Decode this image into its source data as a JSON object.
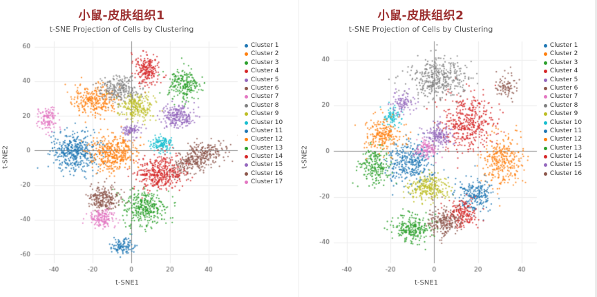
{
  "page": {
    "background": "#ffffff",
    "title_color": "#9c2f2f",
    "subtitle_color": "#555555"
  },
  "chart_data": [
    {
      "type": "scatter",
      "title": "小鼠-皮肤组织1",
      "subtitle": "t-SNE Projection of Cells by Clustering",
      "xlabel": "t-SNE1",
      "ylabel": "t-SNE2",
      "xlim": [
        -50,
        55
      ],
      "ylim": [
        -65,
        63
      ],
      "xticks": [
        -40,
        -20,
        0,
        20,
        40
      ],
      "yticks": [
        -60,
        -40,
        -20,
        0,
        20,
        40,
        60
      ],
      "grid": true,
      "legend_position": "right",
      "point_radius": 1.1,
      "series": [
        {
          "name": "Cluster 1",
          "color": "#1f77b4",
          "cx": -29,
          "cy": -1,
          "sx": 6.5,
          "sy": 5.5,
          "n": 420
        },
        {
          "name": "Cluster 2",
          "color": "#ff7f0e",
          "cx": -20,
          "cy": 29,
          "sx": 5.5,
          "sy": 4.5,
          "n": 280
        },
        {
          "name": "Cluster 3",
          "color": "#2ca02c",
          "cx": 27,
          "cy": 38,
          "sx": 4,
          "sy": 4.5,
          "n": 220
        },
        {
          "name": "Cluster 4",
          "color": "#d62728",
          "cx": 8,
          "cy": 46,
          "sx": 3.5,
          "sy": 4.5,
          "n": 210
        },
        {
          "name": "Cluster 5",
          "color": "#9467bd",
          "cx": 24,
          "cy": 20,
          "sx": 4.5,
          "sy": 3.5,
          "n": 230
        },
        {
          "name": "Cluster 6",
          "color": "#8c564b",
          "cx": 34,
          "cy": -5,
          "sx": 8,
          "sy": 3.5,
          "rot": 28,
          "n": 360
        },
        {
          "name": "Cluster 7",
          "color": "#e377c2",
          "cx": -43,
          "cy": 18,
          "sx": 2.5,
          "sy": 3,
          "n": 120
        },
        {
          "name": "Cluster 8",
          "color": "#7f7f7f",
          "cx": -6,
          "cy": 35,
          "sx": 5,
          "sy": 4,
          "n": 250
        },
        {
          "name": "Cluster 9",
          "color": "#bcbd22",
          "cx": 3,
          "cy": 25,
          "sx": 4.5,
          "sy": 3.5,
          "n": 220
        },
        {
          "name": "Cluster 10",
          "color": "#17becf",
          "cx": 16,
          "cy": 4,
          "sx": 3,
          "sy": 2.5,
          "n": 130
        },
        {
          "name": "Cluster 11",
          "color": "#1f77b4",
          "cx": -4,
          "cy": -55,
          "sx": 3,
          "sy": 2.5,
          "n": 110
        },
        {
          "name": "Cluster 12",
          "color": "#ff7f0e",
          "cx": -9,
          "cy": -1,
          "sx": 6,
          "sy": 5.5,
          "n": 400
        },
        {
          "name": "Cluster 13",
          "color": "#2ca02c",
          "cx": 7,
          "cy": -33,
          "sx": 5.5,
          "sy": 5,
          "n": 330
        },
        {
          "name": "Cluster 14",
          "color": "#d62728",
          "cx": 15,
          "cy": -13,
          "sx": 6,
          "sy": 5,
          "n": 390
        },
        {
          "name": "Cluster 15",
          "color": "#9467bd",
          "cx": 0,
          "cy": 12,
          "sx": 2.5,
          "sy": 2,
          "n": 80
        },
        {
          "name": "Cluster 16",
          "color": "#8c564b",
          "cx": -14,
          "cy": -28,
          "sx": 4,
          "sy": 3.5,
          "n": 230
        },
        {
          "name": "Cluster 17",
          "color": "#e377c2",
          "cx": -15,
          "cy": -39,
          "sx": 3.5,
          "sy": 2.5,
          "n": 160
        }
      ]
    },
    {
      "type": "scatter",
      "title": "小鼠-皮肤组织2",
      "subtitle": "t-SNE Projection of Cells by Clustering",
      "xlabel": "t-SNE1",
      "ylabel": "t-SNE2",
      "xlim": [
        -46,
        47
      ],
      "ylim": [
        -49,
        48
      ],
      "xticks": [
        -40,
        -20,
        0,
        20,
        40
      ],
      "yticks": [
        -40,
        -20,
        0,
        20,
        40
      ],
      "grid": true,
      "legend_position": "right",
      "point_radius": 1.1,
      "series": [
        {
          "name": "Cluster 1",
          "color": "#1f77b4",
          "cx": -11,
          "cy": -5,
          "sx": 5,
          "sy": 4.5,
          "n": 350
        },
        {
          "name": "Cluster 2",
          "color": "#ff7f0e",
          "cx": 31,
          "cy": -4,
          "sx": 4.5,
          "sy": 5.5,
          "n": 300
        },
        {
          "name": "Cluster 3",
          "color": "#2ca02c",
          "cx": -27,
          "cy": -6,
          "sx": 3.5,
          "sy": 4,
          "n": 200
        },
        {
          "name": "Cluster 4",
          "color": "#d62728",
          "cx": 16,
          "cy": 13,
          "sx": 6,
          "sy": 6,
          "n": 420
        },
        {
          "name": "Cluster 5",
          "color": "#9467bd",
          "cx": 2,
          "cy": 7,
          "sx": 3,
          "sy": 2.5,
          "n": 160
        },
        {
          "name": "Cluster 6",
          "color": "#8c564b",
          "cx": 33,
          "cy": 28,
          "sx": 2.5,
          "sy": 2.5,
          "n": 80
        },
        {
          "name": "Cluster 7",
          "color": "#e377c2",
          "cx": -4,
          "cy": 1,
          "sx": 2.5,
          "sy": 2,
          "n": 110
        },
        {
          "name": "Cluster 8",
          "color": "#7f7f7f",
          "cx": 2,
          "cy": 32,
          "sx": 7,
          "sy": 4.5,
          "n": 380
        },
        {
          "name": "Cluster 9",
          "color": "#bcbd22",
          "cx": -3,
          "cy": -16,
          "sx": 4.5,
          "sy": 3,
          "n": 240
        },
        {
          "name": "Cluster 10",
          "color": "#17becf",
          "cx": -19,
          "cy": 15,
          "sx": 2.2,
          "sy": 2.2,
          "n": 90
        },
        {
          "name": "Cluster 11",
          "color": "#1f77b4",
          "cx": 19,
          "cy": -19,
          "sx": 4,
          "sy": 3.5,
          "n": 220
        },
        {
          "name": "Cluster 12",
          "color": "#ff7f0e",
          "cx": -23,
          "cy": 7,
          "sx": 4,
          "sy": 3.5,
          "n": 220
        },
        {
          "name": "Cluster 13",
          "color": "#2ca02c",
          "cx": -10,
          "cy": -34,
          "sx": 4.5,
          "sy": 3,
          "n": 240
        },
        {
          "name": "Cluster 14",
          "color": "#d62728",
          "cx": 13,
          "cy": -27,
          "sx": 3.5,
          "sy": 3,
          "n": 180
        },
        {
          "name": "Cluster 15",
          "color": "#9467bd",
          "cx": -14,
          "cy": 21,
          "sx": 2.5,
          "sy": 2.5,
          "n": 90
        },
        {
          "name": "Cluster 16",
          "color": "#8c564b",
          "cx": 5,
          "cy": -31,
          "sx": 4,
          "sy": 3,
          "n": 220
        }
      ]
    }
  ]
}
